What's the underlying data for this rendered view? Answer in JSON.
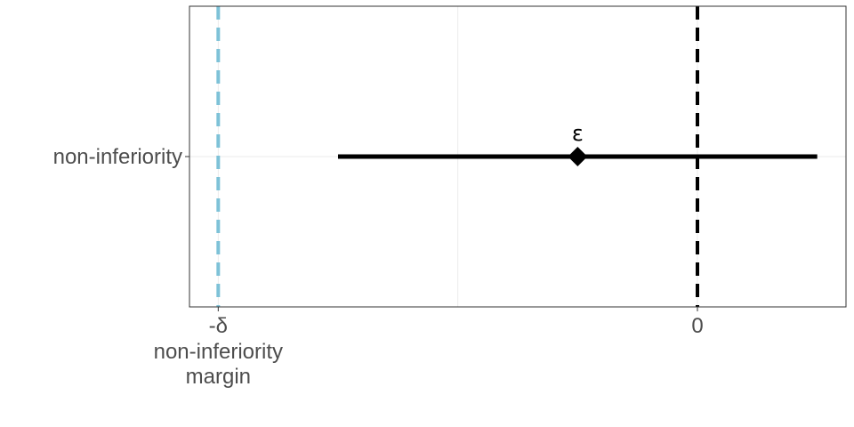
{
  "chart_data": {
    "type": "forest",
    "title": "",
    "xlabel": "",
    "ylabel": "",
    "grid": true,
    "xlim": [
      -1.06,
      0.31
    ],
    "categories": [
      "non-inferiority"
    ],
    "x_ticks": [
      {
        "value": -1,
        "label": "-δ",
        "sublabel": "non-inferiority\nmargin"
      },
      {
        "value": 0,
        "label": "0"
      }
    ],
    "points": [
      {
        "category": "non-inferiority",
        "estimate": -0.25,
        "lower": -0.75,
        "upper": 0.25,
        "label": "ε"
      }
    ],
    "reference_lines": [
      {
        "x": -1,
        "style": "dashed",
        "color": "#7ec2d8"
      },
      {
        "x": 0,
        "style": "dashed",
        "color": "#000000"
      }
    ]
  }
}
